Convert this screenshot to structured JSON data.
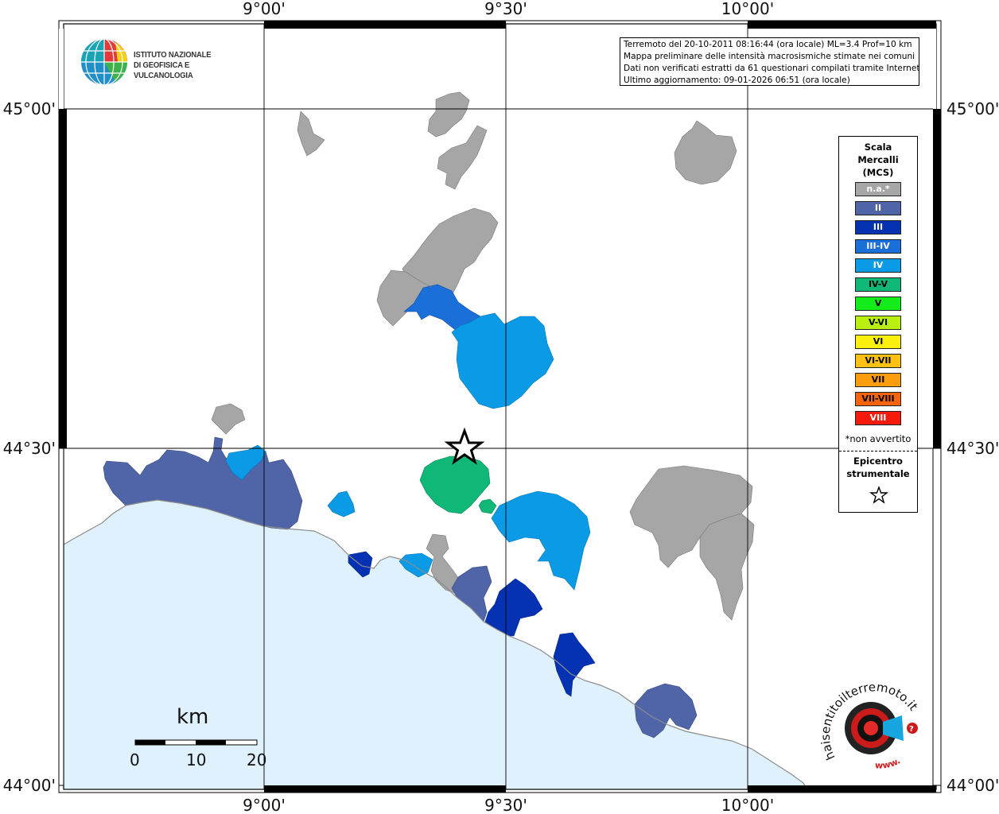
{
  "map": {
    "lon_labels": [
      "9°00'",
      "9°30'",
      "10°00'"
    ],
    "lat_labels": [
      "45°00'",
      "44°30'",
      "44°00'"
    ],
    "colors": {
      "sea": "#dff1fc",
      "coast": "#888888",
      "grid": "#000000"
    }
  },
  "institute": {
    "logo_icon": "ingv-globe-logo",
    "name_line1": "ISTITUTO NAZIONALE",
    "name_line2": "DI GEOFISICA E VULCANOLOGIA"
  },
  "info": {
    "line1": "Terremoto del 20-10-2011 08:16:44 (ora locale) ML=3.4 Prof=10 km",
    "line2": "Mappa preliminare delle intensità macrosismiche stimate nei comuni",
    "line3": "Dati non verificati estratti da 61 questionari compilati tramite Internet.",
    "line4": "Ultimo aggiornamento: 09-01-2026 06:51 (ora locale)"
  },
  "legend": {
    "title1": "Scala",
    "title2": "Mercalli",
    "title3": "(MCS)",
    "classes": [
      {
        "label": "n.a.*",
        "color": "#a6a6a6",
        "text_color": "#ffffff"
      },
      {
        "label": "II",
        "color": "#5065a8",
        "text_color": "#ffffff"
      },
      {
        "label": "III",
        "color": "#0432b2",
        "text_color": "#ffffff"
      },
      {
        "label": "III-IV",
        "color": "#1a6fd8",
        "text_color": "#ffffff"
      },
      {
        "label": "IV",
        "color": "#0b9ae6",
        "text_color": "#ffffff"
      },
      {
        "label": "IV-V",
        "color": "#0fb877",
        "text_color": "#000000"
      },
      {
        "label": "V",
        "color": "#13ec1a",
        "text_color": "#000000"
      },
      {
        "label": "V-VI",
        "color": "#b9f011",
        "text_color": "#000000"
      },
      {
        "label": "VI",
        "color": "#fbf10d",
        "text_color": "#000000"
      },
      {
        "label": "VI-VII",
        "color": "#fcc112",
        "text_color": "#000000"
      },
      {
        "label": "VII",
        "color": "#fb9d0c",
        "text_color": "#000000"
      },
      {
        "label": "VII-VIII",
        "color": "#f8640c",
        "text_color": "#000000"
      },
      {
        "label": "VIII",
        "color": "#f41a0c",
        "text_color": "#ffffff"
      }
    ],
    "note": "*non avvertito",
    "epi1": "Epicentro",
    "epi2": "strumentale",
    "epi_icon": "star-icon"
  },
  "scalebar": {
    "unit": "km",
    "labels": [
      "0",
      "10",
      "20"
    ]
  },
  "badge": {
    "icon": "haisentito-logo",
    "text": "haisentitoilterremoto.it",
    "prefix": "www."
  }
}
